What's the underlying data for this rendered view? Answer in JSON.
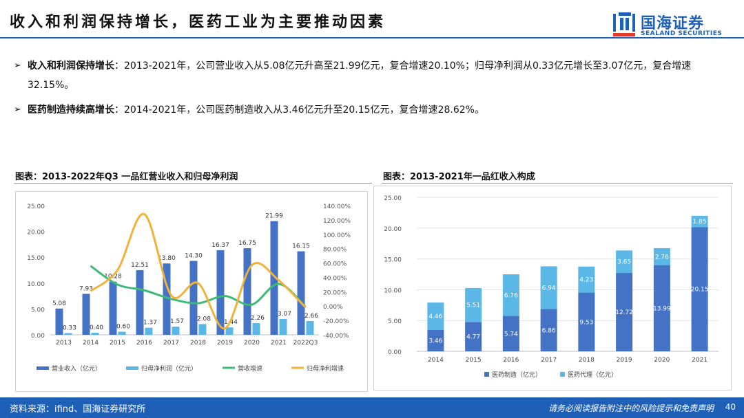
{
  "header": {
    "title": "收入和利润保持增长，医药工业为主要推动因素",
    "logo_cn": "国海证券",
    "logo_en": "SEALAND SECURITIES"
  },
  "bullets": [
    {
      "bold": "收入和利润保持增长",
      "text": "：2013-2021年，公司营业收入从5.08亿元升高至21.99亿元，复合增速20.10%；归母净利润从0.33亿元增长至3.07亿元，复合增速32.15%。"
    },
    {
      "bold": "医药制造持续高增长",
      "text": "：2014-2021年，公司医药制造收入从3.46亿元升至20.15亿元，复合增速28.62%。"
    }
  ],
  "footer": {
    "source": "资料来源：ifind、国海证券研究所",
    "disclaimer": "请务必阅读报告附注中的风险提示和免责声明",
    "page": "40"
  },
  "colors": {
    "brand": "#1e60b8",
    "bar_dark": "#4472c4",
    "bar_light": "#5bb7e6",
    "line_green": "#3cba78",
    "line_orange": "#f2b23a"
  },
  "chart_data": [
    {
      "type": "bar+line",
      "title": "图表：2013-2022年Q3 一品红营业收入和归母净利润",
      "categories": [
        "2013",
        "2014",
        "2015",
        "2016",
        "2017",
        "2018",
        "2019",
        "2020",
        "2021",
        "2022Q3"
      ],
      "ylim": [
        0,
        25
      ],
      "y_ticks": [
        "25.00",
        "20.00",
        "15.00",
        "10.00",
        "5.00",
        "0.00"
      ],
      "y2lim": [
        -40,
        140
      ],
      "y2_ticks": [
        "140.00%",
        "120.00%",
        "100.00%",
        "80.00%",
        "60.00%",
        "40.00%",
        "20.00%",
        "0.00%",
        "-20.00%",
        "-40.00%"
      ],
      "series": [
        {
          "name": "营业收入（亿元）",
          "kind": "bar",
          "values": [
            5.08,
            7.93,
            10.28,
            12.51,
            13.8,
            14.3,
            16.37,
            16.75,
            21.99,
            16.15
          ],
          "labels": [
            "5.08",
            "7.93",
            "10.28",
            "12.51",
            "13.80",
            "14.30",
            "16.37",
            "16.75",
            "21.99",
            "16.15"
          ]
        },
        {
          "name": "归母净利润（亿元）",
          "kind": "bar",
          "values": [
            0.33,
            0.4,
            0.6,
            1.37,
            1.57,
            2.08,
            1.44,
            2.26,
            3.07,
            2.66
          ],
          "labels": [
            "0.33",
            "0.40",
            "0.60",
            "1.37",
            "1.57",
            "2.08",
            "1.44",
            "2.26",
            "3.07",
            "2.66"
          ]
        },
        {
          "name": "营收增速",
          "kind": "line",
          "axis": "right",
          "values": [
            null,
            56,
            30,
            22,
            10,
            4,
            14,
            2,
            31,
            -1
          ]
        },
        {
          "name": "归母净利增速",
          "kind": "line",
          "axis": "right",
          "values": [
            null,
            21,
            50,
            128,
            15,
            32,
            -31,
            57,
            36,
            -2
          ]
        }
      ]
    },
    {
      "type": "stacked-bar",
      "title": "图表：2013-2021年一品红收入构成",
      "categories": [
        "2014",
        "2015",
        "2016",
        "2017",
        "2018",
        "2019",
        "2020",
        "2021"
      ],
      "ylim": [
        0,
        25
      ],
      "y_ticks": [
        "25.00",
        "20.00",
        "15.00",
        "10.00",
        "5.00",
        "0.00"
      ],
      "series": [
        {
          "name": "医药制造（亿元）",
          "values": [
            3.46,
            4.77,
            5.74,
            6.86,
            9.53,
            12.72,
            13.99,
            20.15
          ],
          "labels": [
            "3.46",
            "4.77",
            "5.74",
            "6.86",
            "9.53",
            "12.72",
            "13.99",
            "20.15"
          ]
        },
        {
          "name": "医药代理（亿元）",
          "values": [
            4.46,
            5.51,
            6.76,
            6.94,
            4.23,
            3.65,
            2.76,
            1.85
          ],
          "labels": [
            "4.46",
            "5.51",
            "6.76",
            "6.94",
            "4.23",
            "3.65",
            "2.76",
            "1.85"
          ]
        }
      ]
    }
  ]
}
